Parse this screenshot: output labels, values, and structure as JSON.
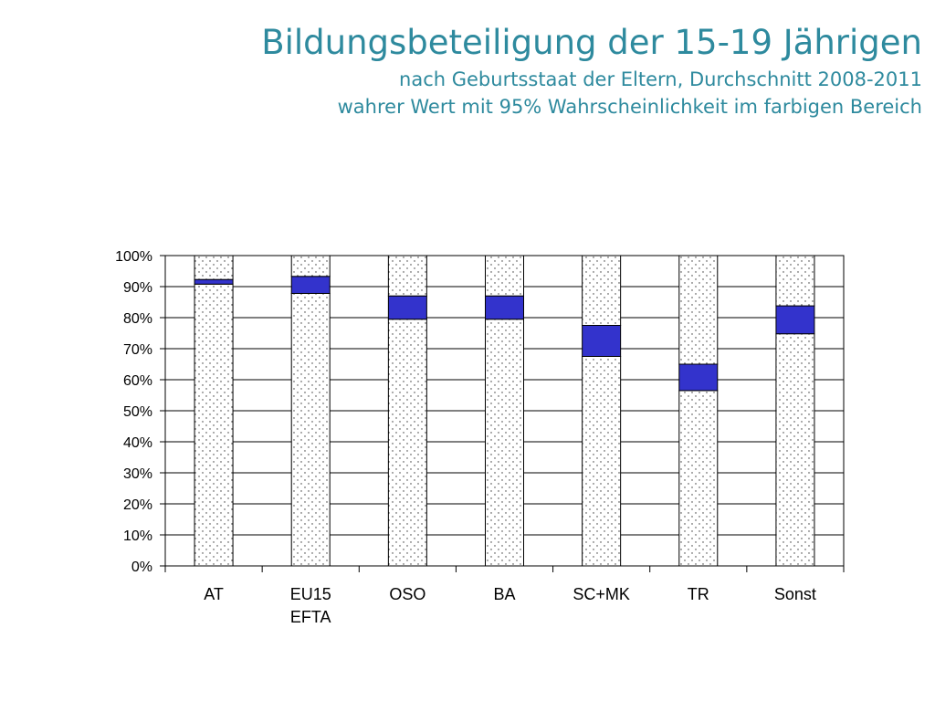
{
  "chart_data": {
    "type": "bar",
    "title": "Bildungsbeteiligung der 15-19 Jährigen",
    "subtitle_lines": [
      "nach Geburtsstaat der Eltern, Durchschnitt 2008-2011",
      "wahrer Wert mit 95% Wahrscheinlichkeit im farbigen Bereich"
    ],
    "categories": [
      {
        "lines": [
          "AT"
        ]
      },
      {
        "lines": [
          "EU15",
          "EFTA"
        ]
      },
      {
        "lines": [
          "OSO"
        ]
      },
      {
        "lines": [
          "BA"
        ]
      },
      {
        "lines": [
          "SC+MK"
        ]
      },
      {
        "lines": [
          "TR"
        ]
      },
      {
        "lines": [
          "Sonst"
        ]
      }
    ],
    "series": [
      {
        "values": [
          90.8,
          87.8,
          79.5,
          79.5,
          67.5,
          56.5,
          74.8
        ]
      },
      {
        "values": [
          1.5,
          5.5,
          7.5,
          7.5,
          10.0,
          8.5,
          9.0
        ]
      },
      {
        "values": [
          7.7,
          6.7,
          13.0,
          13.0,
          22.5,
          35.0,
          16.2
        ]
      }
    ],
    "ylim": [
      0,
      100
    ],
    "yticks": [
      0,
      10,
      20,
      30,
      40,
      50,
      60,
      70,
      80,
      90,
      100
    ],
    "ytick_labels": [
      "0%",
      "10%",
      "20%",
      "30%",
      "40%",
      "50%",
      "60%",
      "70%",
      "80%",
      "90%",
      "100%"
    ],
    "grid": true,
    "stacked": true,
    "colors": {
      "interval": "#3333cc",
      "dotted_fill": "#ffffff",
      "dots": "#333333",
      "grid": "#000000",
      "title": "#2e8a9e"
    }
  }
}
